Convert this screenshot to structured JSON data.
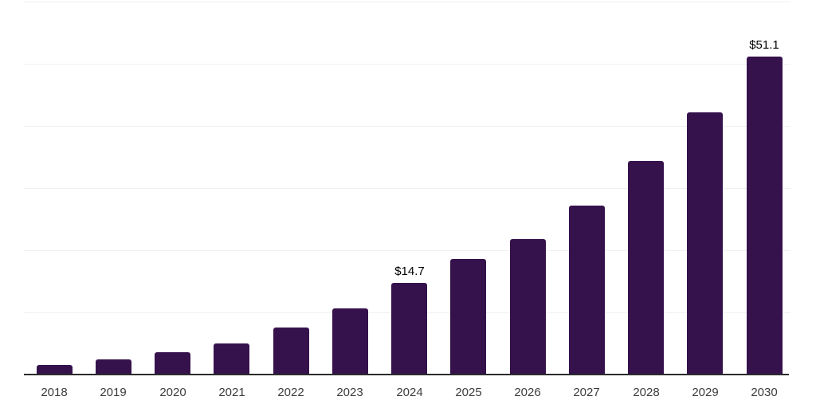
{
  "chart_data": {
    "type": "bar",
    "title": "",
    "xlabel": "",
    "ylabel": "",
    "categories": [
      "2018",
      "2019",
      "2020",
      "2021",
      "2022",
      "2023",
      "2024",
      "2025",
      "2026",
      "2027",
      "2028",
      "2029",
      "2030"
    ],
    "values": [
      1.6,
      2.4,
      3.6,
      5.0,
      7.5,
      10.6,
      14.7,
      18.6,
      21.8,
      27.2,
      34.3,
      42.2,
      51.1
    ],
    "value_labels": {
      "2024": "$14.7",
      "2030": "$51.1"
    },
    "ylim": [
      0,
      60
    ],
    "grid": {
      "horizontal": true,
      "interval": 10,
      "y_tick_labels_shown": false
    },
    "legend": "none",
    "colors": {
      "bar": "#36124d",
      "axis": "#2b2b2b",
      "gridline": "#f0f0f0",
      "value_label": "#000000",
      "tick_label": "#3c3c3c",
      "background": "#ffffff"
    }
  }
}
